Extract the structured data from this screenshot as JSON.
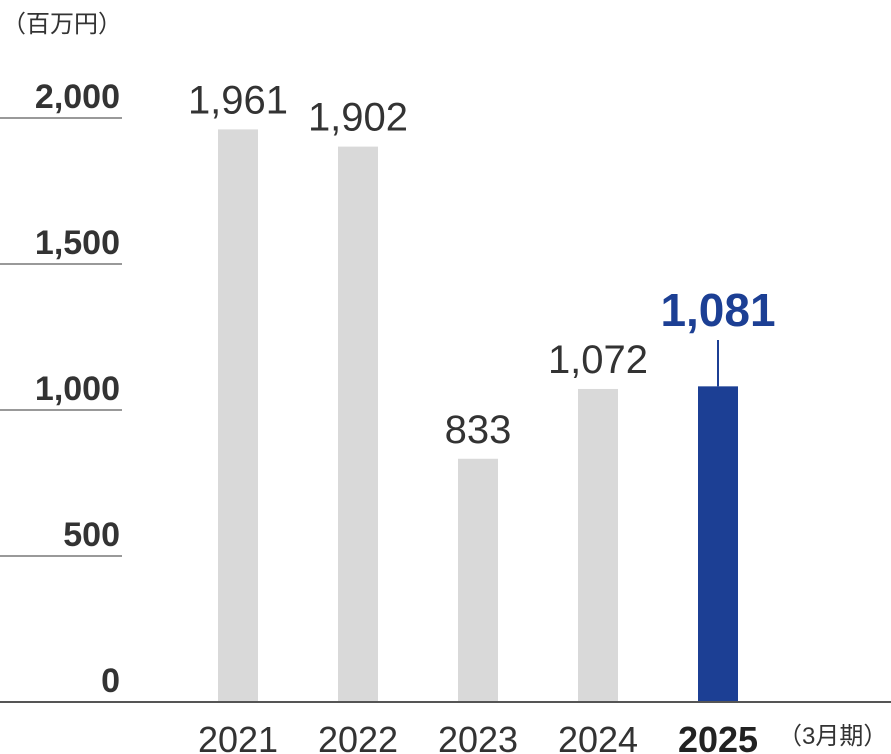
{
  "chart_data": {
    "type": "bar",
    "unit_label": "（百万円）",
    "period_label": "（3月期）",
    "categories": [
      "2021",
      "2022",
      "2023",
      "2024",
      "2025"
    ],
    "values": [
      1961,
      1902,
      833,
      1072,
      1081
    ],
    "value_labels": [
      "1,961",
      "1,902",
      "833",
      "1,072",
      "1,081"
    ],
    "highlight_index": 4,
    "yticks": [
      0,
      500,
      1000,
      1500,
      2000
    ],
    "ytick_labels": [
      "0",
      "500",
      "1,000",
      "1,500",
      "2,000"
    ],
    "ylim": [
      0,
      2000
    ],
    "colors": {
      "bar": "#d9d9d9",
      "highlight": "#1c3f94",
      "axis": "#555555",
      "grid": "#999999"
    }
  }
}
